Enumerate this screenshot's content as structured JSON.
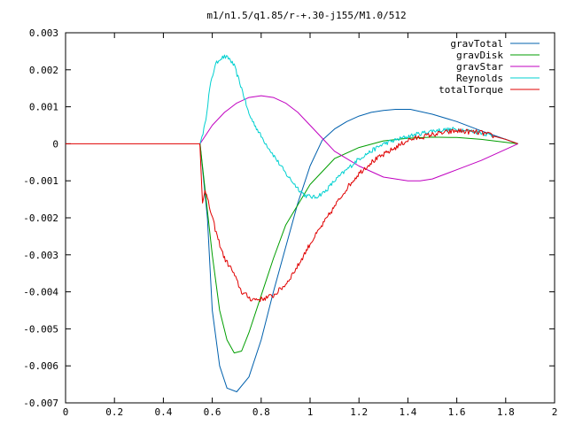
{
  "chart_data": {
    "type": "line",
    "title": "m1/n1.5/q1.85/r-+.30-j155/M1.0/512",
    "xlabel": "",
    "ylabel": "",
    "xlim": [
      0,
      2
    ],
    "ylim": [
      -0.007,
      0.003
    ],
    "grid": false,
    "legend_position": "top-right",
    "x_ticks": [
      {
        "value": 0,
        "label": "0"
      },
      {
        "value": 0.2,
        "label": "0.2"
      },
      {
        "value": 0.4,
        "label": "0.4"
      },
      {
        "value": 0.6,
        "label": "0.6"
      },
      {
        "value": 0.8,
        "label": "0.8"
      },
      {
        "value": 1.0,
        "label": "1"
      },
      {
        "value": 1.2,
        "label": "1.2"
      },
      {
        "value": 1.4,
        "label": "1.4"
      },
      {
        "value": 1.6,
        "label": "1.6"
      },
      {
        "value": 1.8,
        "label": "1.8"
      },
      {
        "value": 2.0,
        "label": "2"
      }
    ],
    "y_ticks": [
      {
        "value": 0.003,
        "label": "0.003"
      },
      {
        "value": 0.002,
        "label": "0.002"
      },
      {
        "value": 0.001,
        "label": "0.001"
      },
      {
        "value": 0,
        "label": "0"
      },
      {
        "value": -0.001,
        "label": "-0.001"
      },
      {
        "value": -0.002,
        "label": "-0.002"
      },
      {
        "value": -0.003,
        "label": "-0.003"
      },
      {
        "value": -0.004,
        "label": "-0.004"
      },
      {
        "value": -0.005,
        "label": "-0.005"
      },
      {
        "value": -0.006,
        "label": "-0.006"
      },
      {
        "value": -0.007,
        "label": "-0.007"
      }
    ],
    "series": [
      {
        "name": "gravTotal",
        "color": "#0060ad",
        "noise": 0,
        "points": [
          [
            0.55,
            0.0
          ],
          [
            0.58,
            -0.002
          ],
          [
            0.6,
            -0.0045
          ],
          [
            0.63,
            -0.006
          ],
          [
            0.66,
            -0.0066
          ],
          [
            0.7,
            -0.0067
          ],
          [
            0.75,
            -0.0063
          ],
          [
            0.8,
            -0.0053
          ],
          [
            0.85,
            -0.004
          ],
          [
            0.9,
            -0.0028
          ],
          [
            0.95,
            -0.0016
          ],
          [
            1.0,
            -0.0006
          ],
          [
            1.05,
            0.0001
          ],
          [
            1.1,
            0.0004
          ],
          [
            1.15,
            0.0006
          ],
          [
            1.2,
            0.00075
          ],
          [
            1.25,
            0.00085
          ],
          [
            1.3,
            0.0009
          ],
          [
            1.35,
            0.00093
          ],
          [
            1.41,
            0.00093
          ],
          [
            1.5,
            0.0008
          ],
          [
            1.6,
            0.0006
          ],
          [
            1.7,
            0.00035
          ],
          [
            1.8,
            0.00012
          ],
          [
            1.85,
            0.0
          ]
        ]
      },
      {
        "name": "gravDisk",
        "color": "#009e00",
        "noise": 0,
        "points": [
          [
            0.55,
            0.0
          ],
          [
            0.57,
            -0.0012
          ],
          [
            0.6,
            -0.003
          ],
          [
            0.63,
            -0.0045
          ],
          [
            0.66,
            -0.0053
          ],
          [
            0.69,
            -0.00565
          ],
          [
            0.72,
            -0.0056
          ],
          [
            0.75,
            -0.0051
          ],
          [
            0.8,
            -0.0041
          ],
          [
            0.85,
            -0.0031
          ],
          [
            0.9,
            -0.0022
          ],
          [
            1.0,
            -0.0011
          ],
          [
            1.1,
            -0.0004
          ],
          [
            1.2,
            -0.0001
          ],
          [
            1.3,
            8e-05
          ],
          [
            1.4,
            0.00015
          ],
          [
            1.5,
            0.00018
          ],
          [
            1.6,
            0.00017
          ],
          [
            1.7,
            0.00012
          ],
          [
            1.8,
            4e-05
          ],
          [
            1.85,
            0.0
          ]
        ]
      },
      {
        "name": "gravStar",
        "color": "#c000c0",
        "noise": 0,
        "points": [
          [
            0.55,
            0.0
          ],
          [
            0.6,
            0.0005
          ],
          [
            0.65,
            0.00085
          ],
          [
            0.7,
            0.0011
          ],
          [
            0.75,
            0.00125
          ],
          [
            0.8,
            0.0013
          ],
          [
            0.85,
            0.00125
          ],
          [
            0.9,
            0.0011
          ],
          [
            0.95,
            0.00085
          ],
          [
            1.0,
            0.0005
          ],
          [
            1.05,
            0.00015
          ],
          [
            1.1,
            -0.0002
          ],
          [
            1.2,
            -0.0006
          ],
          [
            1.3,
            -0.0009
          ],
          [
            1.4,
            -0.001
          ],
          [
            1.45,
            -0.001
          ],
          [
            1.5,
            -0.00095
          ],
          [
            1.6,
            -0.0007
          ],
          [
            1.7,
            -0.00045
          ],
          [
            1.8,
            -0.00015
          ],
          [
            1.85,
            0.0
          ]
        ]
      },
      {
        "name": "Reynolds",
        "color": "#00d0d0",
        "noise": 6e-05,
        "points": [
          [
            0.55,
            0.0
          ],
          [
            0.57,
            0.0005
          ],
          [
            0.59,
            0.0015
          ],
          [
            0.61,
            0.0021
          ],
          [
            0.63,
            0.0023
          ],
          [
            0.65,
            0.00235
          ],
          [
            0.67,
            0.0023
          ],
          [
            0.69,
            0.0021
          ],
          [
            0.72,
            0.0015
          ],
          [
            0.75,
            0.0008
          ],
          [
            0.8,
            0.0002
          ],
          [
            0.85,
            -0.0003
          ],
          [
            0.9,
            -0.0008
          ],
          [
            0.95,
            -0.0012
          ],
          [
            0.98,
            -0.0014
          ],
          [
            1.02,
            -0.00145
          ],
          [
            1.06,
            -0.0013
          ],
          [
            1.1,
            -0.001
          ],
          [
            1.15,
            -0.0007
          ],
          [
            1.2,
            -0.0004
          ],
          [
            1.25,
            -0.0002
          ],
          [
            1.3,
            0.0
          ],
          [
            1.4,
            0.0002
          ],
          [
            1.5,
            0.00035
          ],
          [
            1.6,
            0.0004
          ],
          [
            1.7,
            0.0003
          ],
          [
            1.8,
            0.00012
          ],
          [
            1.85,
            0.0
          ]
        ]
      },
      {
        "name": "totalTorque",
        "color": "#e00000",
        "noise": 7e-05,
        "points": [
          [
            0.0,
            0.0
          ],
          [
            0.549,
            0.0
          ],
          [
            0.55,
            -0.0001
          ],
          [
            0.56,
            -0.0016
          ],
          [
            0.57,
            -0.0012
          ],
          [
            0.58,
            -0.0015
          ],
          [
            0.6,
            -0.002
          ],
          [
            0.62,
            -0.0025
          ],
          [
            0.65,
            -0.0031
          ],
          [
            0.68,
            -0.0034
          ],
          [
            0.7,
            -0.0037
          ],
          [
            0.72,
            -0.004
          ],
          [
            0.76,
            -0.0042
          ],
          [
            0.8,
            -0.0042
          ],
          [
            0.85,
            -0.0041
          ],
          [
            0.9,
            -0.0038
          ],
          [
            0.95,
            -0.0033
          ],
          [
            1.0,
            -0.0027
          ],
          [
            1.05,
            -0.0022
          ],
          [
            1.1,
            -0.0017
          ],
          [
            1.15,
            -0.0012
          ],
          [
            1.2,
            -0.0008
          ],
          [
            1.25,
            -0.0005
          ],
          [
            1.3,
            -0.0003
          ],
          [
            1.35,
            -0.0001
          ],
          [
            1.4,
            0.0001
          ],
          [
            1.5,
            0.00025
          ],
          [
            1.6,
            0.00035
          ],
          [
            1.7,
            0.0003
          ],
          [
            1.8,
            0.00012
          ],
          [
            1.85,
            0.0
          ]
        ]
      }
    ]
  }
}
